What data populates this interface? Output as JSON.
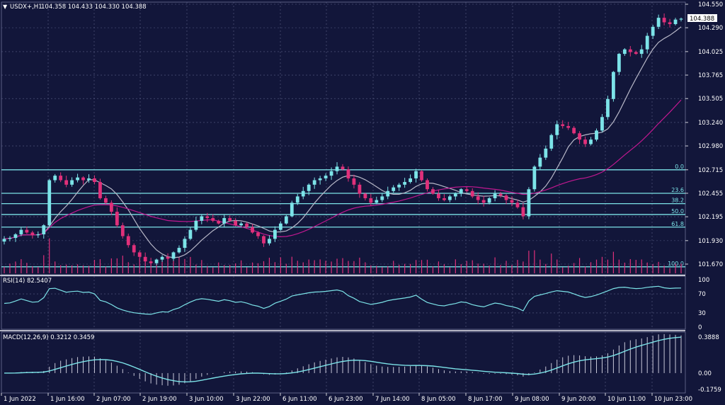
{
  "symbol_header": {
    "arrow": "▼",
    "symbol": "USDX+,H1",
    "ohlc": "104.358 104.433 104.330 104.388"
  },
  "price_axis": {
    "ticks": [
      "104.550",
      "104.290",
      "104.025",
      "103.765",
      "103.505",
      "103.240",
      "102.980",
      "102.715",
      "102.455",
      "102.195",
      "101.930",
      "101.670"
    ],
    "current_price": "104.388"
  },
  "fibonacci_levels": [
    {
      "label": "0.0",
      "price": 102.715
    },
    {
      "label": "23.6",
      "price": 102.455
    },
    {
      "label": "38.2",
      "price": 102.34
    },
    {
      "label": "50.0",
      "price": 102.22
    },
    {
      "label": "61.8",
      "price": 102.08
    },
    {
      "label": "100.0",
      "price": 101.64
    }
  ],
  "rsi_panel": {
    "label": "RSI(14) 82.5407",
    "ticks": [
      "100",
      "70",
      "30",
      "0"
    ]
  },
  "macd_panel": {
    "label": "MACD(12,26,9) 0.3212 0.3459",
    "ticks": [
      "0.3888",
      "0.00",
      "-0.1759"
    ]
  },
  "time_axis": {
    "labels": [
      "1 Jun 2022",
      "1 Jun 16:00",
      "2 Jun 07:00",
      "2 Jun 19:00",
      "3 Jun 10:00",
      "3 Jun 22:00",
      "6 Jun 11:00",
      "6 Jun 23:00",
      "7 Jun 14:00",
      "8 Jun 05:00",
      "8 Jun 17:00",
      "9 Jun 08:00",
      "9 Jun 20:00",
      "10 Jun 11:00",
      "10 Jun 23:00"
    ]
  },
  "colors": {
    "background": "#12163a",
    "grid": "#5a5f86",
    "bull_candle": "#7ce3e8",
    "bear_candle": "#e0307a",
    "fib_line": "#7ce3e8",
    "ma_fast": "#b8b8c8",
    "ma_slow": "#c01890",
    "axis_text": "#ffffff"
  },
  "chart_data": {
    "type": "line",
    "series": [
      {
        "values": [
          101.95,
          101.96,
          102.0,
          102.05,
          102.02,
          101.99,
          102.0,
          102.1,
          102.6,
          102.65,
          102.6,
          102.55,
          102.6,
          102.63,
          102.6,
          102.62,
          102.58,
          102.4,
          102.35,
          102.25,
          102.1,
          101.98,
          101.88,
          101.8,
          101.75,
          101.7,
          101.68,
          101.72,
          101.75,
          101.73,
          101.8,
          101.85,
          101.95,
          102.05,
          102.15,
          102.2,
          102.18,
          102.15,
          102.12,
          102.18,
          102.15,
          102.1,
          102.12,
          102.08,
          102.02,
          101.98,
          101.9,
          101.95,
          102.05,
          102.12,
          102.2,
          102.35,
          102.42,
          102.48,
          102.55,
          102.6,
          102.62,
          102.65,
          102.7,
          102.75,
          102.72,
          102.62,
          102.55,
          102.45,
          102.4,
          102.35,
          102.38,
          102.42,
          102.48,
          102.52,
          102.55,
          102.58,
          102.62,
          102.7,
          102.6,
          102.5,
          102.45,
          102.4,
          102.38,
          102.42,
          102.45,
          102.5,
          102.48,
          102.42,
          102.38,
          102.35,
          102.4,
          102.45,
          102.43,
          102.38,
          102.35,
          102.3,
          102.2,
          102.5,
          102.75,
          102.85,
          102.95,
          103.1,
          103.22,
          103.2,
          103.18,
          103.12,
          103.05,
          103.0,
          103.05,
          103.15,
          103.3,
          103.5,
          103.8,
          104.0,
          104.05,
          104.02,
          104.0,
          104.05,
          104.2,
          104.3,
          104.4,
          104.35,
          104.33,
          104.38,
          104.39
        ]
      }
    ]
  }
}
